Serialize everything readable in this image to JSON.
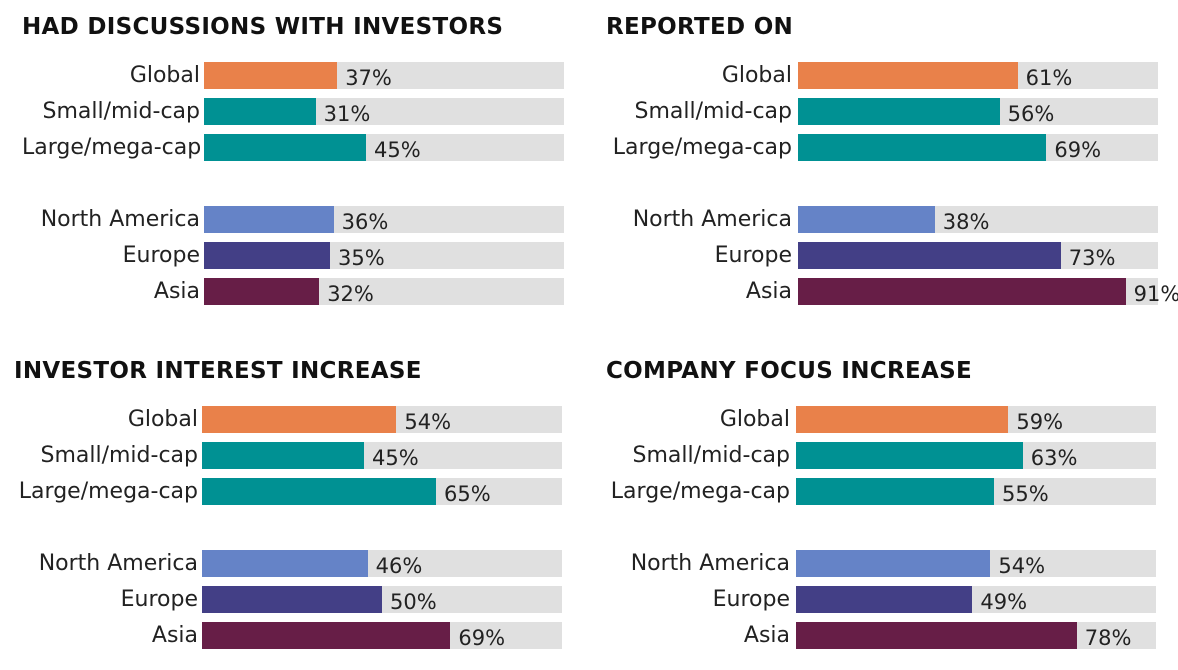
{
  "colors": {
    "Global": "#e9814a",
    "Small/mid-cap": "#009193",
    "Large/mega-cap": "#009193",
    "North America": "#6583c7",
    "Europe": "#433f86",
    "Asia": "#671e47",
    "track": "#e0e0e0"
  },
  "chart_data": [
    {
      "type": "bar",
      "title": "HAD DISCUSSIONS WITH INVESTORS",
      "categories": [
        "Global",
        "Small/mid-cap",
        "Large/mega-cap",
        "North America",
        "Europe",
        "Asia"
      ],
      "values": [
        37,
        31,
        45,
        36,
        35,
        32
      ],
      "labels": [
        "37%",
        "31%",
        "45%",
        "36%",
        "35%",
        "32%"
      ],
      "xlim": [
        0,
        100
      ]
    },
    {
      "type": "bar",
      "title": "REPORTED ON",
      "categories": [
        "Global",
        "Small/mid-cap",
        "Large/mega-cap",
        "North America",
        "Europe",
        "Asia"
      ],
      "values": [
        61,
        56,
        69,
        38,
        73,
        91
      ],
      "labels": [
        "61%",
        "56%",
        "69%",
        "38%",
        "73%",
        "91%"
      ],
      "xlim": [
        0,
        100
      ]
    },
    {
      "type": "bar",
      "title": "INVESTOR INTEREST INCREASE",
      "categories": [
        "Global",
        "Small/mid-cap",
        "Large/mega-cap",
        "North America",
        "Europe",
        "Asia"
      ],
      "values": [
        54,
        45,
        65,
        46,
        50,
        69
      ],
      "labels": [
        "54%",
        "45%",
        "65%",
        "46%",
        "50%",
        "69%"
      ],
      "xlim": [
        0,
        100
      ]
    },
    {
      "type": "bar",
      "title": "COMPANY FOCUS INCREASE",
      "categories": [
        "Global",
        "Small/mid-cap",
        "Large/mega-cap",
        "North America",
        "Europe",
        "Asia"
      ],
      "values": [
        59,
        63,
        55,
        54,
        49,
        78
      ],
      "labels": [
        "59%",
        "63%",
        "55%",
        "54%",
        "49%",
        "78%"
      ],
      "xlim": [
        0,
        100
      ]
    }
  ]
}
